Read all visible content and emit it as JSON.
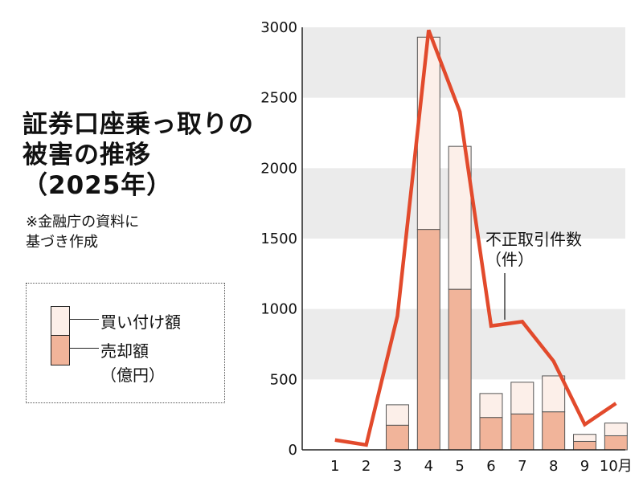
{
  "title": "証券口座乗っ取りの\n被害の推移\n（2025年）",
  "note": "※金融庁の資料に\n基づき作成",
  "legend": {
    "buy_label": "買い付け額",
    "sell_label": "売却額",
    "unit_label": "（億円）"
  },
  "chart_data": {
    "type": "bar",
    "categories": [
      "1",
      "2",
      "3",
      "4",
      "5",
      "6",
      "7",
      "8",
      "9",
      "10月"
    ],
    "ylim": [
      0,
      3000
    ],
    "yticks": [
      0,
      500,
      1000,
      1500,
      2000,
      2500,
      3000
    ],
    "grid_bands": true,
    "series": [
      {
        "name": "売却額",
        "stack": "amount",
        "values": [
          0,
          0,
          175,
          1565,
          1140,
          230,
          255,
          270,
          60,
          100
        ],
        "color": "#f1b49a"
      },
      {
        "name": "買い付け額",
        "stack": "amount",
        "values": [
          0,
          0,
          145,
          1365,
          1015,
          170,
          225,
          255,
          50,
          90
        ],
        "color": "#fcefe9"
      }
    ],
    "line_series": {
      "name": "不正取引件数（件）",
      "values": [
        70,
        35,
        950,
        2980,
        2400,
        880,
        910,
        630,
        180,
        330
      ],
      "color": "#e24a2c"
    },
    "annotation": {
      "text_line1": "不正取引件数",
      "text_line2": "（件）"
    }
  }
}
